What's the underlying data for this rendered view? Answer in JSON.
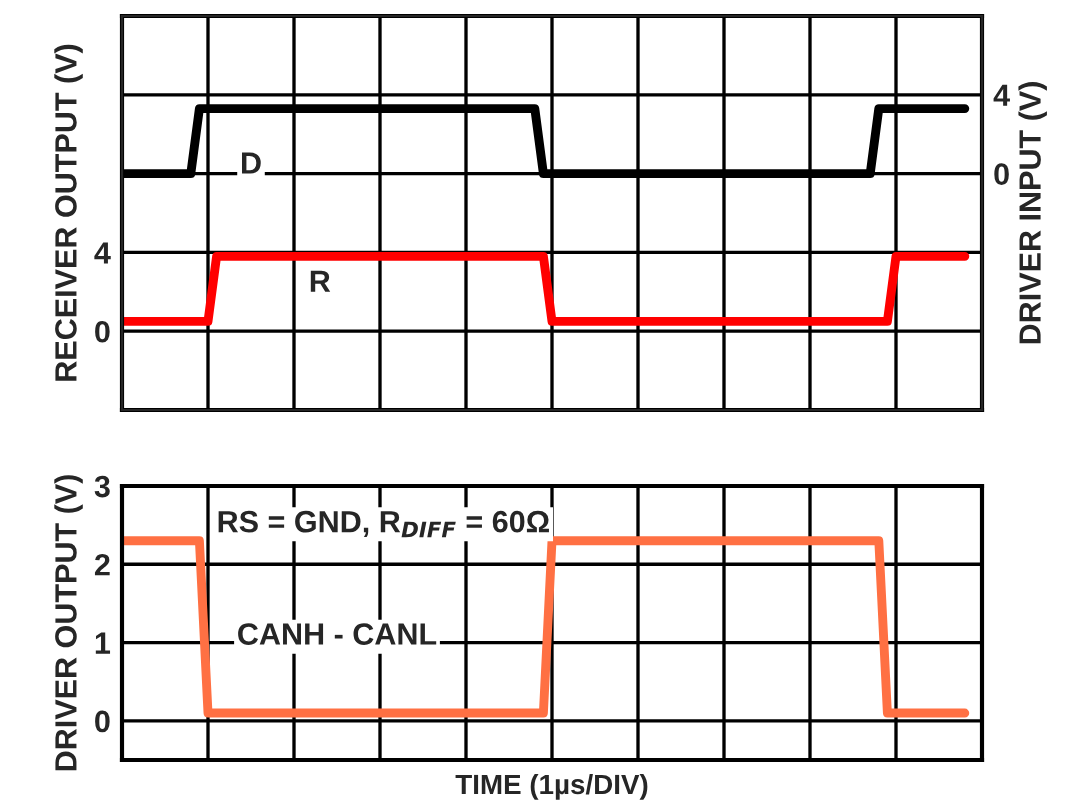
{
  "chart_data": [
    {
      "type": "line",
      "ylabel": "RECEIVER OUTPUT (V)",
      "y2label": "DRIVER INPUT (V)",
      "grid": true,
      "tick_labels": "y",
      "line_style": "solid",
      "categories": [
        null,
        null,
        null,
        null,
        null,
        null,
        null,
        null,
        null,
        null,
        null,
        null,
        null,
        null,
        null,
        null,
        null,
        null,
        null,
        null,
        null,
        null,
        null,
        null,
        null,
        null,
        null,
        null,
        null,
        null,
        null,
        null,
        null,
        null,
        null,
        null,
        null,
        null,
        null,
        null,
        null,
        null,
        null,
        null,
        null,
        null,
        null,
        null,
        null,
        null,
        null,
        null,
        null,
        null,
        null,
        null,
        null,
        null,
        null,
        null,
        null,
        null,
        null,
        null,
        null,
        null,
        null,
        null,
        null,
        null,
        null,
        null,
        null,
        null,
        null,
        null,
        null,
        null,
        null,
        null,
        null,
        null,
        null,
        null,
        null,
        null,
        null,
        null,
        null,
        null,
        null,
        null,
        null,
        null,
        null,
        null,
        null,
        null,
        null
      ],
      "ylim": [
        -4,
        16
      ],
      "yticks": [
        {
          "value": -4,
          "label": null
        },
        0,
        4,
        {
          "value": 8,
          "label": null
        },
        {
          "value": 12,
          "label": null
        },
        {
          "value": 16,
          "label": null
        }
      ],
      "y2lim": [
        -12,
        8
      ],
      "y2ticks": [
        0,
        4
      ],
      "series": [
        {
          "name": "D",
          "color": "#000000",
          "axis": "y2",
          "values": [
            0,
            0,
            0,
            0,
            0,
            0,
            0,
            0,
            0,
            3.3,
            3.3,
            3.3,
            3.3,
            3.3,
            3.3,
            3.3,
            3.3,
            3.3,
            3.3,
            3.3,
            3.3,
            3.3,
            3.3,
            3.3,
            3.3,
            3.3,
            3.3,
            3.3,
            3.3,
            3.3,
            3.3,
            3.3,
            3.3,
            3.3,
            3.3,
            3.3,
            3.3,
            3.3,
            3.3,
            3.3,
            3.3,
            3.3,
            3.3,
            3.3,
            3.3,
            3.3,
            3.3,
            3.3,
            3.3,
            0,
            0,
            0,
            0,
            0,
            0,
            0,
            0,
            0,
            0,
            0,
            0,
            0,
            0,
            0,
            0,
            0,
            0,
            0,
            0,
            0,
            0,
            0,
            0,
            0,
            0,
            0,
            0,
            0,
            0,
            0,
            0,
            0,
            0,
            0,
            0,
            0,
            0,
            0,
            3.3,
            3.3,
            3.3,
            3.3,
            3.3,
            3.3,
            3.3,
            3.3,
            3.3,
            3.3,
            3.3
          ]
        },
        {
          "name": "R",
          "color": "#ff0000",
          "values": [
            0.5,
            0.5,
            0.5,
            0.5,
            0.5,
            0.5,
            0.5,
            0.5,
            0.5,
            0.5,
            0.5,
            3.8,
            3.8,
            3.8,
            3.8,
            3.8,
            3.8,
            3.8,
            3.8,
            3.8,
            3.8,
            3.8,
            3.8,
            3.8,
            3.8,
            3.8,
            3.8,
            3.8,
            3.8,
            3.8,
            3.8,
            3.8,
            3.8,
            3.8,
            3.8,
            3.8,
            3.8,
            3.8,
            3.8,
            3.8,
            3.8,
            3.8,
            3.8,
            3.8,
            3.8,
            3.8,
            3.8,
            3.8,
            3.8,
            3.8,
            0.5,
            0.5,
            0.5,
            0.5,
            0.5,
            0.5,
            0.5,
            0.5,
            0.5,
            0.5,
            0.5,
            0.5,
            0.5,
            0.5,
            0.5,
            0.5,
            0.5,
            0.5,
            0.5,
            0.5,
            0.5,
            0.5,
            0.5,
            0.5,
            0.5,
            0.5,
            0.5,
            0.5,
            0.5,
            0.5,
            0.5,
            0.5,
            0.5,
            0.5,
            0.5,
            0.5,
            0.5,
            0.5,
            0.5,
            0.5,
            3.8,
            3.8,
            3.8,
            3.8,
            3.8,
            3.8,
            3.8,
            3.8,
            3.8
          ]
        }
      ]
    },
    {
      "type": "line",
      "ylabel": "DRIVER OUTPUT (V)",
      "xlabel": "TIME (1µs/DIV)",
      "grid": true,
      "tick_labels": "y",
      "line_style": "solid",
      "annotations": [
        "RS = GND, R$_{DIFF}$ = 60Ω"
      ],
      "categories": [
        null,
        null,
        null,
        null,
        null,
        null,
        null,
        null,
        null,
        null,
        null,
        null,
        null,
        null,
        null,
        null,
        null,
        null,
        null,
        null,
        null,
        null,
        null,
        null,
        null,
        null,
        null,
        null,
        null,
        null,
        null,
        null,
        null,
        null,
        null,
        null,
        null,
        null,
        null,
        null,
        null,
        null,
        null,
        null,
        null,
        null,
        null,
        null,
        null,
        null,
        null,
        null,
        null,
        null,
        null,
        null,
        null,
        null,
        null,
        null,
        null,
        null,
        null,
        null,
        null,
        null,
        null,
        null,
        null,
        null,
        null,
        null,
        null,
        null,
        null,
        null,
        null,
        null,
        null,
        null,
        null,
        null,
        null,
        null,
        null,
        null,
        null,
        null,
        null,
        null,
        null,
        null,
        null,
        null,
        null,
        null,
        null,
        null,
        null
      ],
      "ylim": [
        -0.5,
        3
      ],
      "yticks": [
        0,
        1,
        2,
        3
      ],
      "series": [
        {
          "name": "CANH - CANL",
          "color": "#ff7043",
          "values": [
            2.3,
            2.3,
            2.3,
            2.3,
            2.3,
            2.3,
            2.3,
            2.3,
            2.3,
            2.3,
            0.1,
            0.1,
            0.1,
            0.1,
            0.1,
            0.1,
            0.1,
            0.1,
            0.1,
            0.1,
            0.1,
            0.1,
            0.1,
            0.1,
            0.1,
            0.1,
            0.1,
            0.1,
            0.1,
            0.1,
            0.1,
            0.1,
            0.1,
            0.1,
            0.1,
            0.1,
            0.1,
            0.1,
            0.1,
            0.1,
            0.1,
            0.1,
            0.1,
            0.1,
            0.1,
            0.1,
            0.1,
            0.1,
            0.1,
            0.1,
            2.3,
            2.3,
            2.3,
            2.3,
            2.3,
            2.3,
            2.3,
            2.3,
            2.3,
            2.3,
            2.3,
            2.3,
            2.3,
            2.3,
            2.3,
            2.3,
            2.3,
            2.3,
            2.3,
            2.3,
            2.3,
            2.3,
            2.3,
            2.3,
            2.3,
            2.3,
            2.3,
            2.3,
            2.3,
            2.3,
            2.3,
            2.3,
            2.3,
            2.3,
            2.3,
            2.3,
            2.3,
            2.3,
            2.3,
            0.1,
            0.1,
            0.1,
            0.1,
            0.1,
            0.1,
            0.1,
            0.1,
            0.1,
            0.1
          ]
        }
      ]
    }
  ]
}
